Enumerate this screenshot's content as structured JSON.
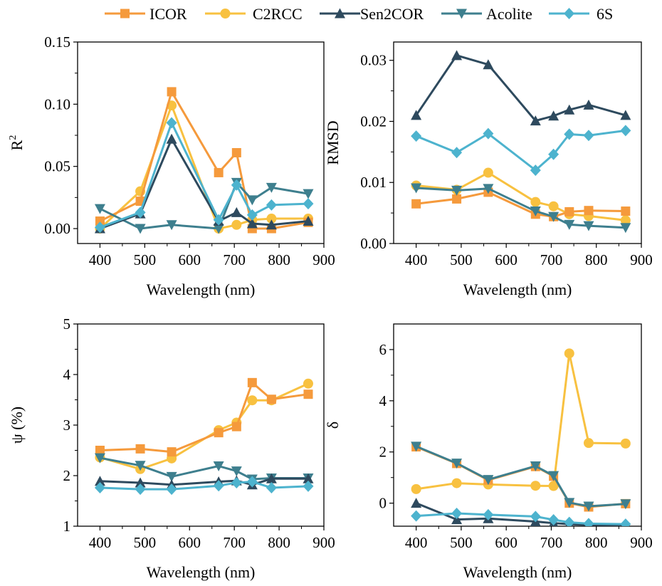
{
  "legend": [
    {
      "name": "ICOR",
      "color": "#F59A3C",
      "marker": "square"
    },
    {
      "name": "C2RCC",
      "color": "#F8C140",
      "marker": "circle"
    },
    {
      "name": "Sen2COR",
      "color": "#2E4A5E",
      "marker": "triangle-up"
    },
    {
      "name": "Acolite",
      "color": "#3E7F8E",
      "marker": "triangle-down"
    },
    {
      "name": "6S",
      "color": "#4DB3CE",
      "marker": "diamond"
    }
  ],
  "chart_data": [
    {
      "type": "line",
      "xlabel": "Wavelength (nm)",
      "ylabel": "R",
      "ylabel_sup": "2",
      "xlim": [
        350,
        900
      ],
      "ylim": [
        -0.012,
        0.15
      ],
      "xticks": [
        400,
        500,
        600,
        700,
        800,
        900
      ],
      "yticks": [
        0.0,
        0.05,
        0.1,
        0.15
      ],
      "ytick_labels": [
        "0.00",
        "0.05",
        "0.10",
        "0.15"
      ],
      "x": [
        400,
        490,
        560,
        665,
        705,
        740,
        783,
        865
      ],
      "series": [
        {
          "name": "ICOR",
          "values": [
            0.006,
            0.022,
            0.11,
            0.045,
            0.061,
            0.0,
            0.0,
            0.005
          ]
        },
        {
          "name": "C2RCC",
          "values": [
            0.0,
            0.03,
            0.099,
            0.0,
            0.003,
            0.007,
            0.008,
            0.008
          ]
        },
        {
          "name": "Sen2COR",
          "values": [
            0.0,
            0.012,
            0.072,
            0.006,
            0.013,
            0.004,
            0.003,
            0.006
          ]
        },
        {
          "name": "Acolite",
          "values": [
            0.016,
            0.0,
            0.003,
            0.0,
            0.037,
            0.023,
            0.033,
            0.028
          ]
        },
        {
          "name": "6S",
          "values": [
            0.001,
            0.013,
            0.085,
            0.007,
            0.035,
            0.011,
            0.019,
            0.02
          ]
        }
      ]
    },
    {
      "type": "line",
      "xlabel": "Wavelength (nm)",
      "ylabel": "RMSD",
      "xlim": [
        350,
        900
      ],
      "ylim": [
        0,
        0.033
      ],
      "xticks": [
        400,
        500,
        600,
        700,
        800,
        900
      ],
      "yticks": [
        0.0,
        0.01,
        0.02,
        0.03
      ],
      "ytick_labels": [
        "0.00",
        "0.01",
        "0.02",
        "0.03"
      ],
      "x": [
        400,
        490,
        560,
        665,
        705,
        740,
        783,
        865
      ],
      "series": [
        {
          "name": "ICOR",
          "values": [
            0.0065,
            0.0073,
            0.0084,
            0.0048,
            0.0044,
            0.0052,
            0.0054,
            0.0053
          ]
        },
        {
          "name": "C2RCC",
          "values": [
            0.0095,
            0.0088,
            0.0116,
            0.0068,
            0.0061,
            0.0048,
            0.0045,
            0.0038
          ]
        },
        {
          "name": "Sen2COR",
          "values": [
            0.021,
            0.0308,
            0.0293,
            0.0201,
            0.0209,
            0.0219,
            0.0227,
            0.021
          ]
        },
        {
          "name": "Acolite",
          "values": [
            0.0091,
            0.0087,
            0.009,
            0.0053,
            0.0044,
            0.0031,
            0.0029,
            0.0026
          ]
        },
        {
          "name": "6S",
          "values": [
            0.0176,
            0.0149,
            0.018,
            0.012,
            0.0146,
            0.0179,
            0.0177,
            0.0185
          ]
        }
      ]
    },
    {
      "type": "line",
      "xlabel": "Wavelength (nm)",
      "ylabel": "ψ (%)",
      "xlim": [
        350,
        900
      ],
      "ylim": [
        1,
        5
      ],
      "xticks": [
        400,
        500,
        600,
        700,
        800,
        900
      ],
      "yticks": [
        1,
        2,
        3,
        4,
        5
      ],
      "ytick_labels": [
        "1",
        "2",
        "3",
        "4",
        "5"
      ],
      "x": [
        400,
        490,
        560,
        665,
        705,
        740,
        783,
        865
      ],
      "series": [
        {
          "name": "ICOR",
          "values": [
            2.5,
            2.53,
            2.47,
            2.85,
            2.97,
            3.84,
            3.51,
            3.61
          ]
        },
        {
          "name": "C2RCC",
          "values": [
            2.36,
            2.13,
            2.34,
            2.9,
            3.05,
            3.49,
            3.49,
            3.82
          ]
        },
        {
          "name": "Sen2COR",
          "values": [
            1.89,
            1.86,
            1.82,
            1.88,
            1.9,
            1.82,
            1.94,
            1.94
          ]
        },
        {
          "name": "Acolite",
          "values": [
            2.35,
            2.2,
            1.98,
            2.19,
            2.09,
            1.93,
            1.95,
            1.95
          ]
        },
        {
          "name": "6S",
          "values": [
            1.76,
            1.73,
            1.73,
            1.8,
            1.86,
            1.88,
            1.76,
            1.79
          ]
        }
      ]
    },
    {
      "type": "line",
      "xlabel": "Wavelength (nm)",
      "ylabel": "δ",
      "xlim": [
        350,
        900
      ],
      "ylim": [
        -0.9,
        7
      ],
      "xticks": [
        400,
        500,
        600,
        700,
        800,
        900
      ],
      "yticks": [
        0,
        2,
        4,
        6
      ],
      "ytick_labels": [
        "0",
        "2",
        "4",
        "6"
      ],
      "x": [
        400,
        490,
        560,
        665,
        705,
        740,
        783,
        865
      ],
      "series": [
        {
          "name": "ICOR",
          "values": [
            2.2,
            1.55,
            0.9,
            1.43,
            1.05,
            0.0,
            -0.15,
            -0.02
          ]
        },
        {
          "name": "C2RCC",
          "values": [
            0.55,
            0.78,
            0.73,
            0.68,
            0.67,
            5.85,
            2.35,
            2.33
          ]
        },
        {
          "name": "Sen2COR",
          "values": [
            0.0,
            -0.64,
            -0.6,
            -0.72,
            -0.78,
            -0.82,
            -0.85,
            -0.86
          ]
        },
        {
          "name": "Acolite",
          "values": [
            2.22,
            1.56,
            0.92,
            1.45,
            1.07,
            0.02,
            -0.12,
            -0.03
          ]
        },
        {
          "name": "6S",
          "values": [
            -0.5,
            -0.4,
            -0.45,
            -0.52,
            -0.65,
            -0.75,
            -0.8,
            -0.82
          ]
        }
      ]
    }
  ]
}
